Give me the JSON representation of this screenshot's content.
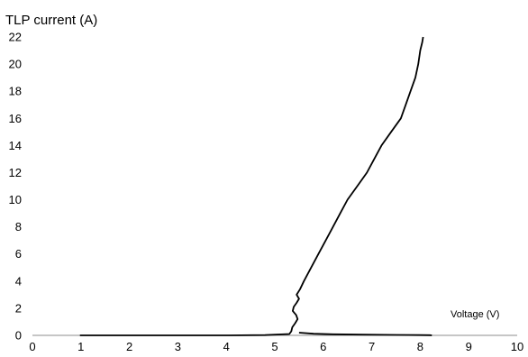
{
  "chart_data": {
    "type": "line",
    "ylabel": "TLP current (A)",
    "xlabel": "Voltage (V)",
    "xlim": [
      0,
      10
    ],
    "ylim": [
      0,
      22
    ],
    "x_ticks": [
      "0",
      "1",
      "2",
      "3",
      "4",
      "5",
      "6",
      "7",
      "8",
      "9",
      "10"
    ],
    "y_ticks": [
      "0",
      "2",
      "4",
      "6",
      "8",
      "10",
      "12",
      "14",
      "16",
      "18",
      "20",
      "22"
    ],
    "grid": false,
    "series": [
      {
        "color": "#000000",
        "x": [
          0.98,
          2.0,
          3.0,
          4.0,
          4.8,
          5.3,
          5.34,
          5.36,
          5.42,
          5.47,
          5.44,
          5.37,
          5.39,
          5.45,
          5.5,
          5.45,
          5.52,
          5.6,
          5.75,
          5.9,
          6.05,
          6.2,
          6.35,
          6.5,
          6.7,
          6.9,
          7.05,
          7.2,
          7.4,
          7.6,
          7.7,
          7.8,
          7.9,
          7.96,
          8.0,
          8.04,
          8.06
        ],
        "y": [
          0.0,
          0.0,
          0.0,
          0.0,
          0.02,
          0.1,
          0.3,
          0.6,
          0.9,
          1.2,
          1.5,
          1.8,
          2.1,
          2.4,
          2.7,
          3.0,
          3.4,
          4.0,
          5.0,
          6.0,
          7.0,
          8.0,
          9.0,
          10.0,
          11.0,
          12.0,
          13.0,
          14.0,
          15.0,
          16.0,
          17.0,
          18.0,
          19.0,
          20.0,
          21.0,
          21.6,
          22.0
        ]
      },
      {
        "color": "#000000",
        "x": [
          5.5,
          5.8,
          6.2,
          6.8,
          7.5,
          8.0,
          8.2,
          8.24
        ],
        "y": [
          0.2,
          0.12,
          0.08,
          0.05,
          0.03,
          0.02,
          0.01,
          0.0
        ]
      }
    ]
  }
}
